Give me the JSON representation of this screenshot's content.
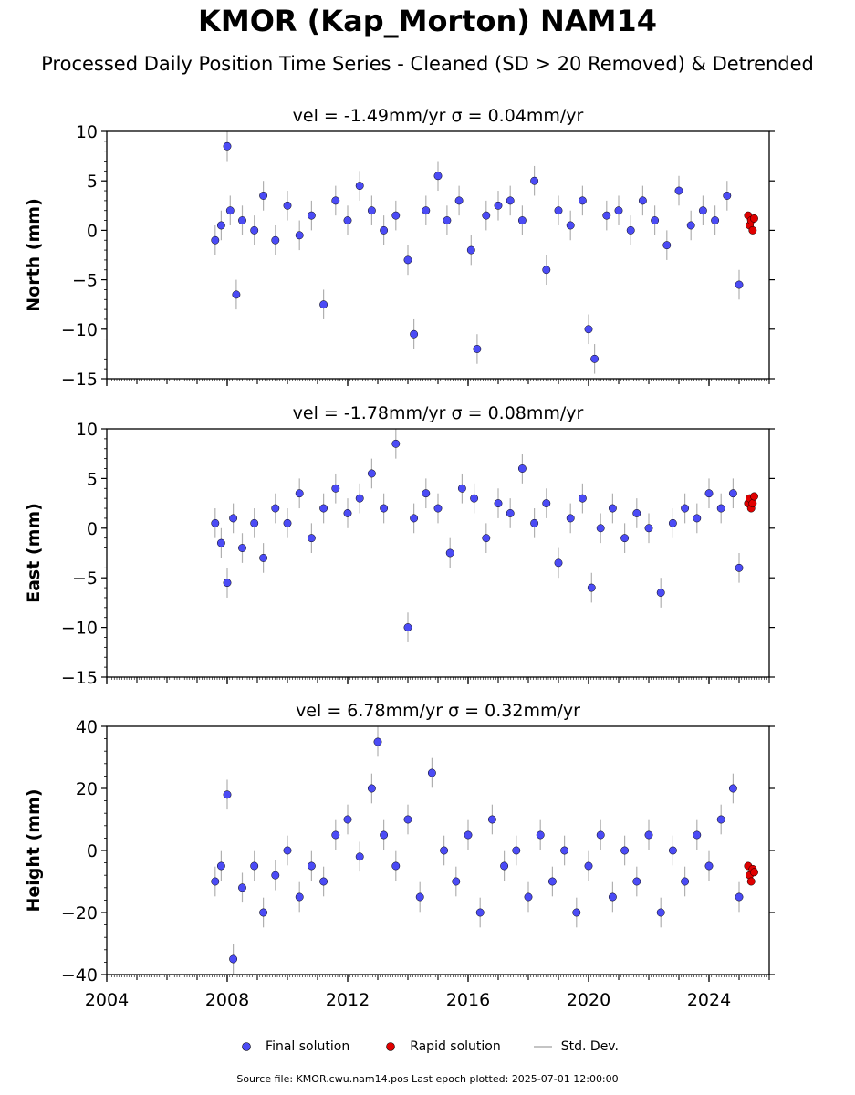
{
  "title": "KMOR (Kap_Morton) NAM14",
  "subtitle": "Processed Daily Position Time Series - Cleaned (SD > 20 Removed) & Detrended",
  "legend": {
    "final": "Final solution",
    "rapid": "Rapid solution",
    "std": "Std. Dev."
  },
  "footer": "Source file: KMOR.cwu.nam14.pos  Last epoch plotted: 2025-07-01 12:00:00",
  "colors": {
    "final": "#4b4bf5",
    "rapid": "#e00000",
    "std": "#b0b0b0",
    "edge": "#000000"
  },
  "chart_data": [
    {
      "type": "scatter",
      "title": "vel = -1.49mm/yr   σ = 0.04mm/yr",
      "ylabel": "North (mm)",
      "xlabel": "",
      "xlim": [
        2004.0,
        2026.0
      ],
      "ylim": [
        -15,
        10
      ],
      "yticks": [
        -15,
        -10,
        -5,
        0,
        5,
        10
      ],
      "xticks": [
        2004,
        2008,
        2012,
        2016,
        2020,
        2024
      ],
      "show_xticklabels": false,
      "series": [
        {
          "name": "Final solution",
          "x": [
            2007.6,
            2007.8,
            2008.0,
            2008.1,
            2008.3,
            2008.5,
            2008.9,
            2009.2,
            2009.6,
            2010.0,
            2010.4,
            2010.8,
            2011.2,
            2011.6,
            2012.0,
            2012.4,
            2012.8,
            2013.2,
            2013.6,
            2014.0,
            2014.2,
            2014.6,
            2015.0,
            2015.3,
            2015.7,
            2016.1,
            2016.3,
            2016.6,
            2017.0,
            2017.4,
            2017.8,
            2018.2,
            2018.6,
            2019.0,
            2019.4,
            2019.8,
            2020.0,
            2020.2,
            2020.6,
            2021.0,
            2021.4,
            2021.8,
            2022.2,
            2022.6,
            2023.0,
            2023.4,
            2023.8,
            2024.2,
            2024.6,
            2025.0
          ],
          "y": [
            -1.0,
            0.5,
            8.5,
            2.0,
            -6.5,
            1.0,
            0.0,
            3.5,
            -1.0,
            2.5,
            -0.5,
            1.5,
            -7.5,
            3.0,
            1.0,
            4.5,
            2.0,
            0.0,
            1.5,
            -3.0,
            -10.5,
            2.0,
            5.5,
            1.0,
            3.0,
            -2.0,
            -12.0,
            1.5,
            2.5,
            3.0,
            1.0,
            5.0,
            -4.0,
            2.0,
            0.5,
            3.0,
            -10.0,
            -13.0,
            1.5,
            2.0,
            0.0,
            3.0,
            1.0,
            -1.5,
            4.0,
            0.5,
            2.0,
            1.0,
            3.5,
            -5.5
          ]
        },
        {
          "name": "Rapid solution",
          "x": [
            2025.3,
            2025.35,
            2025.4,
            2025.45,
            2025.5
          ],
          "y": [
            1.5,
            0.5,
            1.0,
            0.0,
            1.2
          ]
        }
      ]
    },
    {
      "type": "scatter",
      "title": "vel = -1.78mm/yr   σ = 0.08mm/yr",
      "ylabel": "East (mm)",
      "xlabel": "",
      "xlim": [
        2004.0,
        2026.0
      ],
      "ylim": [
        -15,
        10
      ],
      "yticks": [
        -15,
        -10,
        -5,
        0,
        5,
        10
      ],
      "xticks": [
        2004,
        2008,
        2012,
        2016,
        2020,
        2024
      ],
      "show_xticklabels": false,
      "series": [
        {
          "name": "Final solution",
          "x": [
            2007.6,
            2007.8,
            2008.0,
            2008.2,
            2008.5,
            2008.9,
            2009.2,
            2009.6,
            2010.0,
            2010.4,
            2010.8,
            2011.2,
            2011.6,
            2012.0,
            2012.4,
            2012.8,
            2013.2,
            2013.6,
            2014.0,
            2014.2,
            2014.6,
            2015.0,
            2015.4,
            2015.8,
            2016.2,
            2016.6,
            2017.0,
            2017.4,
            2017.8,
            2018.2,
            2018.6,
            2019.0,
            2019.4,
            2019.8,
            2020.1,
            2020.4,
            2020.8,
            2021.2,
            2021.6,
            2022.0,
            2022.4,
            2022.8,
            2023.2,
            2023.6,
            2024.0,
            2024.4,
            2024.8,
            2025.0
          ],
          "y": [
            0.5,
            -1.5,
            -5.5,
            1.0,
            -2.0,
            0.5,
            -3.0,
            2.0,
            0.5,
            3.5,
            -1.0,
            2.0,
            4.0,
            1.5,
            3.0,
            5.5,
            2.0,
            8.5,
            -10.0,
            1.0,
            3.5,
            2.0,
            -2.5,
            4.0,
            3.0,
            -1.0,
            2.5,
            1.5,
            6.0,
            0.5,
            2.5,
            -3.5,
            1.0,
            3.0,
            -6.0,
            0.0,
            2.0,
            -1.0,
            1.5,
            0.0,
            -6.5,
            0.5,
            2.0,
            1.0,
            3.5,
            2.0,
            3.5,
            -4.0
          ]
        },
        {
          "name": "Rapid solution",
          "x": [
            2025.3,
            2025.35,
            2025.4,
            2025.45,
            2025.5
          ],
          "y": [
            2.5,
            3.0,
            2.0,
            2.5,
            3.2
          ]
        }
      ]
    },
    {
      "type": "scatter",
      "title": "vel = 6.78mm/yr   σ = 0.32mm/yr",
      "ylabel": "Height (mm)",
      "xlabel": "",
      "xlim": [
        2004.0,
        2026.0
      ],
      "ylim": [
        -40,
        40
      ],
      "yticks": [
        -40,
        -20,
        0,
        20,
        40
      ],
      "xticks": [
        2004,
        2008,
        2012,
        2016,
        2020,
        2024
      ],
      "show_xticklabels": true,
      "series": [
        {
          "name": "Final solution",
          "x": [
            2007.6,
            2007.8,
            2008.0,
            2008.2,
            2008.5,
            2008.9,
            2009.2,
            2009.6,
            2010.0,
            2010.4,
            2010.8,
            2011.2,
            2011.6,
            2012.0,
            2012.4,
            2012.8,
            2013.0,
            2013.2,
            2013.6,
            2014.0,
            2014.4,
            2014.8,
            2015.2,
            2015.6,
            2016.0,
            2016.4,
            2016.8,
            2017.2,
            2017.6,
            2018.0,
            2018.4,
            2018.8,
            2019.2,
            2019.6,
            2020.0,
            2020.4,
            2020.8,
            2021.2,
            2021.6,
            2022.0,
            2022.4,
            2022.8,
            2023.2,
            2023.6,
            2024.0,
            2024.4,
            2024.8,
            2025.0
          ],
          "y": [
            -10,
            -5,
            18,
            -35,
            -12,
            -5,
            -20,
            -8,
            0,
            -15,
            -5,
            -10,
            5,
            10,
            -2,
            20,
            35,
            5,
            -5,
            10,
            -15,
            25,
            0,
            -10,
            5,
            -20,
            10,
            -5,
            0,
            -15,
            5,
            -10,
            0,
            -20,
            -5,
            5,
            -15,
            0,
            -10,
            5,
            -20,
            0,
            -10,
            5,
            -5,
            10,
            20,
            -15
          ]
        },
        {
          "name": "Rapid solution",
          "x": [
            2025.3,
            2025.35,
            2025.4,
            2025.45,
            2025.5
          ],
          "y": [
            -5,
            -8,
            -10,
            -6,
            -7
          ]
        }
      ]
    }
  ]
}
